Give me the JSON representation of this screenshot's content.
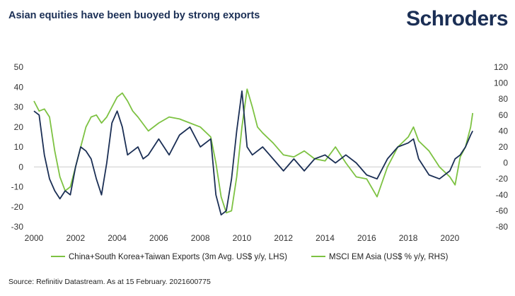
{
  "title": "Asian equities have been buoyed by strong exports",
  "brand": "Schroders",
  "source": "Source: Refinitiv Datastream. As at 15 February. 2021600775",
  "colors": {
    "exports": "#7dc242",
    "msci": "#1b2f55",
    "axis": "#333333",
    "grid": "#cccccc"
  },
  "chart_data": {
    "type": "line",
    "x_ticks": [
      "2000",
      "2002",
      "2004",
      "2006",
      "2008",
      "2010",
      "2012",
      "2014",
      "2016",
      "2018",
      "2020"
    ],
    "xlim": [
      2000,
      2021.5
    ],
    "left_axis": {
      "ylim": [
        -30,
        50
      ],
      "ticks": [
        "-30",
        "-20",
        "-10",
        "0",
        "10",
        "20",
        "30",
        "40",
        "50"
      ]
    },
    "right_axis": {
      "ylim": [
        -80,
        120
      ],
      "ticks": [
        "-80",
        "-60",
        "-40",
        "-20",
        "0",
        "20",
        "40",
        "60",
        "80",
        "100",
        "120"
      ]
    },
    "series": [
      {
        "name": "China+South Korea+Taiwan Exports (3m Avg. US$ y/y, LHS)",
        "axis": "left",
        "x": [
          2000.0,
          2000.25,
          2000.5,
          2000.75,
          2001.0,
          2001.25,
          2001.5,
          2001.75,
          2002.0,
          2002.25,
          2002.5,
          2002.75,
          2003.0,
          2003.25,
          2003.5,
          2003.75,
          2004.0,
          2004.25,
          2004.5,
          2004.75,
          2005.0,
          2005.5,
          2006.0,
          2006.5,
          2007.0,
          2007.5,
          2008.0,
          2008.5,
          2008.75,
          2009.0,
          2009.25,
          2009.5,
          2009.75,
          2010.0,
          2010.25,
          2010.5,
          2010.75,
          2011.0,
          2011.5,
          2012.0,
          2012.5,
          2013.0,
          2013.5,
          2014.0,
          2014.5,
          2015.0,
          2015.5,
          2016.0,
          2016.5,
          2017.0,
          2017.5,
          2018.0,
          2018.25,
          2018.5,
          2019.0,
          2019.5,
          2020.0,
          2020.25,
          2020.5,
          2020.75,
          2021.0,
          2021.1
        ],
        "y": [
          33,
          28,
          29,
          25,
          8,
          -5,
          -12,
          -10,
          0,
          10,
          20,
          25,
          26,
          22,
          25,
          30,
          35,
          37,
          33,
          28,
          25,
          18,
          22,
          25,
          24,
          22,
          20,
          15,
          2,
          -15,
          -23,
          -22,
          -5,
          20,
          39,
          30,
          20,
          17,
          12,
          6,
          5,
          8,
          4,
          3,
          10,
          2,
          -5,
          -6,
          -15,
          0,
          10,
          15,
          20,
          13,
          8,
          0,
          -5,
          -9,
          5,
          10,
          20,
          27
        ]
      },
      {
        "name": "MSCI EM Asia (US$ % y/y, RHS)",
        "axis": "right",
        "x": [
          2000.0,
          2000.25,
          2000.5,
          2000.75,
          2001.0,
          2001.25,
          2001.5,
          2001.75,
          2002.0,
          2002.25,
          2002.5,
          2002.75,
          2003.0,
          2003.25,
          2003.5,
          2003.75,
          2004.0,
          2004.25,
          2004.5,
          2004.75,
          2005.0,
          2005.25,
          2005.5,
          2006.0,
          2006.5,
          2007.0,
          2007.5,
          2008.0,
          2008.5,
          2008.75,
          2009.0,
          2009.25,
          2009.5,
          2009.75,
          2010.0,
          2010.25,
          2010.5,
          2011.0,
          2011.5,
          2012.0,
          2012.5,
          2013.0,
          2013.5,
          2014.0,
          2014.5,
          2015.0,
          2015.5,
          2016.0,
          2016.5,
          2017.0,
          2017.5,
          2018.0,
          2018.25,
          2018.5,
          2019.0,
          2019.5,
          2020.0,
          2020.25,
          2020.5,
          2020.75,
          2021.0,
          2021.1
        ],
        "y": [
          65,
          60,
          10,
          -20,
          -35,
          -45,
          -35,
          -40,
          -5,
          20,
          15,
          5,
          -20,
          -40,
          0,
          50,
          65,
          45,
          10,
          15,
          20,
          5,
          10,
          30,
          10,
          35,
          45,
          20,
          30,
          -40,
          -65,
          -60,
          -20,
          40,
          90,
          20,
          10,
          20,
          5,
          -10,
          5,
          -10,
          5,
          10,
          0,
          10,
          0,
          -15,
          -20,
          5,
          20,
          25,
          30,
          5,
          -15,
          -20,
          -10,
          5,
          10,
          20,
          35,
          40
        ]
      }
    ]
  }
}
